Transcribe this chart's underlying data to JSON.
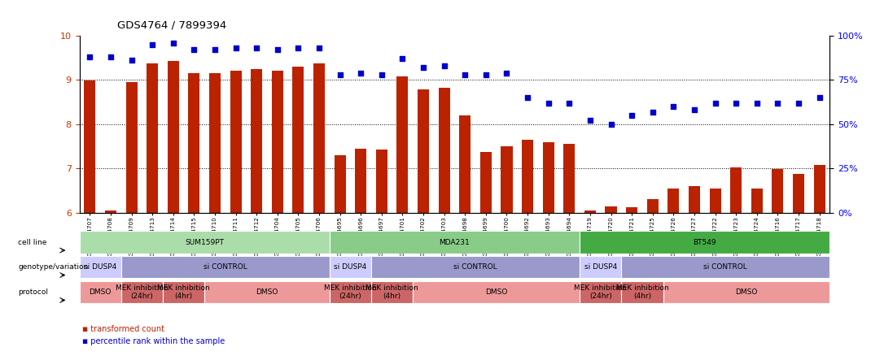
{
  "title": "GDS4764 / 7899394",
  "samples": [
    "GSM1024707",
    "GSM1024708",
    "GSM1024709",
    "GSM1024713",
    "GSM1024714",
    "GSM1024715",
    "GSM1024710",
    "GSM1024711",
    "GSM1024712",
    "GSM1024704",
    "GSM1024705",
    "GSM1024706",
    "GSM1024695",
    "GSM1024696",
    "GSM1024697",
    "GSM1024701",
    "GSM1024702",
    "GSM1024703",
    "GSM1024698",
    "GSM1024699",
    "GSM1024700",
    "GSM1024692",
    "GSM1024693",
    "GSM1024694",
    "GSM1024719",
    "GSM1024720",
    "GSM1024721",
    "GSM1024725",
    "GSM1024726",
    "GSM1024727",
    "GSM1024722",
    "GSM1024723",
    "GSM1024724",
    "GSM1024716",
    "GSM1024717",
    "GSM1024718"
  ],
  "bar_values": [
    8.98,
    6.05,
    8.95,
    9.38,
    9.42,
    9.15,
    9.15,
    9.2,
    9.25,
    9.2,
    9.3,
    9.38,
    7.3,
    7.45,
    7.42,
    9.08,
    8.78,
    8.82,
    8.2,
    7.38,
    7.5,
    7.65,
    7.6,
    7.55,
    6.05,
    6.15,
    6.12,
    6.3,
    6.55,
    6.6,
    6.55,
    7.02,
    6.55,
    6.98,
    6.88,
    7.08
  ],
  "percentile_values": [
    88,
    88,
    86,
    95,
    96,
    92,
    92,
    93,
    93,
    92,
    93,
    93,
    78,
    79,
    78,
    87,
    82,
    83,
    78,
    78,
    79,
    65,
    62,
    62,
    52,
    50,
    55,
    57,
    60,
    58,
    62,
    62,
    62,
    62,
    62,
    65
  ],
  "bar_color": "#bb2200",
  "dot_color": "#0000cc",
  "ylim_left": [
    6,
    10
  ],
  "ylim_right": [
    0,
    100
  ],
  "yticks_left": [
    6,
    7,
    8,
    9,
    10
  ],
  "yticks_right": [
    0,
    25,
    50,
    75,
    100
  ],
  "cell_lines": [
    {
      "label": "SUM159PT",
      "start": 0,
      "end": 11,
      "color": "#aaddaa"
    },
    {
      "label": "MDA231",
      "start": 12,
      "end": 23,
      "color": "#88cc88"
    },
    {
      "label": "BT549",
      "start": 24,
      "end": 35,
      "color": "#44aa44"
    }
  ],
  "genotypes": [
    {
      "label": "si DUSP4",
      "start": 0,
      "end": 1,
      "color": "#ccccff"
    },
    {
      "label": "si CONTROL",
      "start": 2,
      "end": 11,
      "color": "#9999cc"
    },
    {
      "label": "si DUSP4",
      "start": 12,
      "end": 13,
      "color": "#ccccff"
    },
    {
      "label": "si CONTROL",
      "start": 14,
      "end": 23,
      "color": "#9999cc"
    },
    {
      "label": "si DUSP4",
      "start": 24,
      "end": 25,
      "color": "#ccccff"
    },
    {
      "label": "si CONTROL",
      "start": 26,
      "end": 35,
      "color": "#9999cc"
    }
  ],
  "protocols": [
    {
      "label": "DMSO",
      "start": 0,
      "end": 1,
      "color": "#ee9999"
    },
    {
      "label": "MEK inhibition\n(24hr)",
      "start": 2,
      "end": 3,
      "color": "#cc6666"
    },
    {
      "label": "MEK inhibition\n(4hr)",
      "start": 4,
      "end": 5,
      "color": "#cc6666"
    },
    {
      "label": "DMSO",
      "start": 6,
      "end": 11,
      "color": "#ee9999"
    },
    {
      "label": "MEK inhibition\n(24hr)",
      "start": 12,
      "end": 13,
      "color": "#cc6666"
    },
    {
      "label": "MEK inhibition\n(4hr)",
      "start": 14,
      "end": 15,
      "color": "#cc6666"
    },
    {
      "label": "DMSO",
      "start": 16,
      "end": 23,
      "color": "#ee9999"
    },
    {
      "label": "MEK inhibition\n(24hr)",
      "start": 24,
      "end": 25,
      "color": "#cc6666"
    },
    {
      "label": "MEK inhibition\n(4hr)",
      "start": 26,
      "end": 27,
      "color": "#cc6666"
    },
    {
      "label": "DMSO",
      "start": 28,
      "end": 35,
      "color": "#ee9999"
    }
  ],
  "row_labels": [
    "cell line",
    "genotype/variation",
    "protocol"
  ],
  "legend_bar_label": "transformed count",
  "legend_dot_label": "percentile rank within the sample"
}
